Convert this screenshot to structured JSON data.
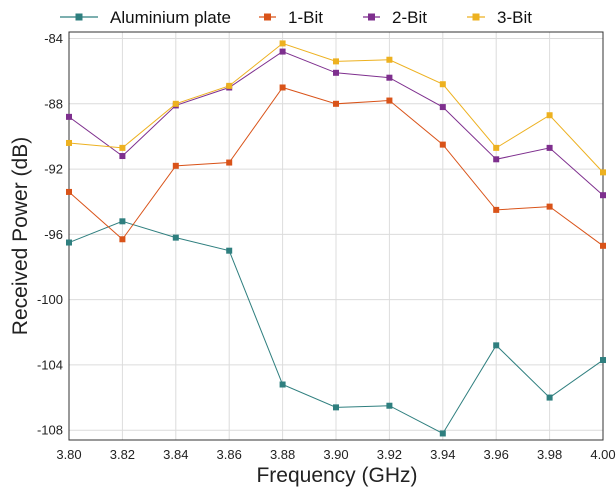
{
  "chart_data": {
    "type": "line",
    "xlabel": "Frequency (GHz)",
    "ylabel": "Received Power (dB)",
    "xlim": [
      3.8,
      4.0
    ],
    "ylim": [
      -108.6,
      -83.6
    ],
    "x_ticks": [
      "3.80",
      "3.82",
      "3.84",
      "3.86",
      "3.88",
      "3.90",
      "3.92",
      "3.94",
      "3.96",
      "3.98",
      "4.00"
    ],
    "y_ticks": [
      "-84",
      "-88",
      "-92",
      "-96",
      "-100",
      "-104",
      "-108"
    ],
    "grid": true,
    "legend_position": "top",
    "x": [
      3.8,
      3.82,
      3.84,
      3.86,
      3.88,
      3.9,
      3.92,
      3.94,
      3.96,
      3.98,
      4.0
    ],
    "series": [
      {
        "name": "Aluminium plate",
        "color": "#2f7f7f",
        "marker": "square",
        "values": [
          -96.5,
          -95.2,
          -96.2,
          -97.0,
          -105.2,
          -106.6,
          -106.5,
          -108.2,
          -102.8,
          -106.0,
          -103.7
        ]
      },
      {
        "name": "1-Bit",
        "color": "#d95319",
        "marker": "square",
        "values": [
          -93.4,
          -96.3,
          -91.8,
          -91.6,
          -87.0,
          -88.0,
          -87.8,
          -90.5,
          -94.5,
          -94.3,
          -96.7
        ]
      },
      {
        "name": "2-Bit",
        "color": "#7e2f8e",
        "marker": "square",
        "values": [
          -88.8,
          -91.2,
          -88.1,
          -87.0,
          -84.8,
          -86.1,
          -86.4,
          -88.2,
          -91.4,
          -90.7,
          -93.6
        ]
      },
      {
        "name": "3-Bit",
        "color": "#edb120",
        "marker": "square",
        "values": [
          -90.4,
          -90.7,
          -88.0,
          -86.9,
          -84.3,
          -85.4,
          -85.3,
          -86.8,
          -90.7,
          -88.7,
          -92.2
        ]
      }
    ]
  }
}
